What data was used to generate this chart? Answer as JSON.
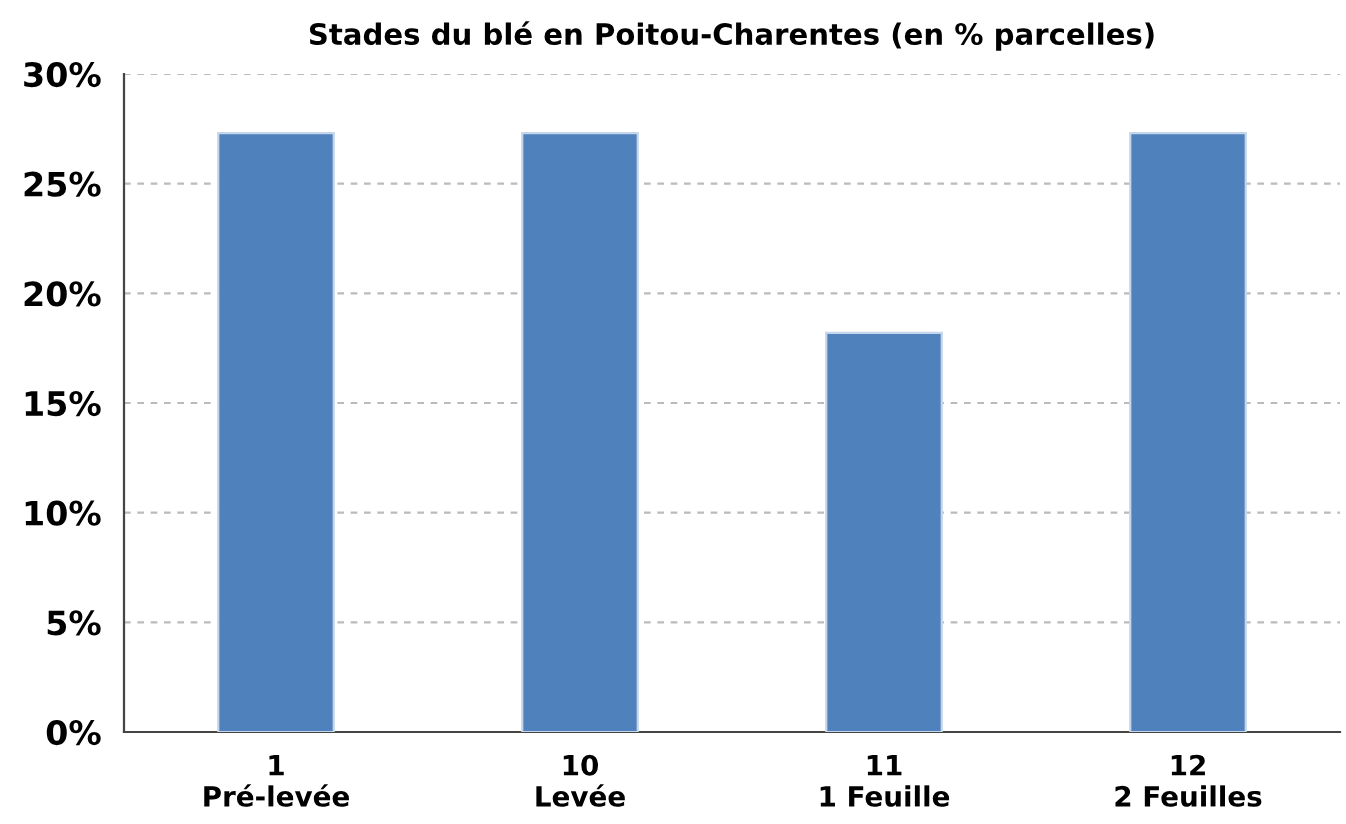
{
  "chart_data": {
    "type": "bar",
    "title": "Stades du blé en Poitou-Charentes (en % parcelles)",
    "categories": [
      "1\nPré-levée",
      "10\nLevée",
      "11\n1 Feuille",
      "12\n2 Feuilles"
    ],
    "values": [
      27.3,
      27.3,
      18.2,
      27.3
    ],
    "color": "#4f81bd",
    "ylim": [
      0,
      30
    ],
    "yticks": [
      {
        "value": 0,
        "label": "0%"
      },
      {
        "value": 5,
        "label": "5%"
      },
      {
        "value": 10,
        "label": "10%"
      },
      {
        "value": 15,
        "label": "15%"
      },
      {
        "value": 20,
        "label": "20%"
      },
      {
        "value": 25,
        "label": "25%"
      },
      {
        "value": 30,
        "label": "30%"
      }
    ],
    "grid": "y",
    "legend": false
  }
}
